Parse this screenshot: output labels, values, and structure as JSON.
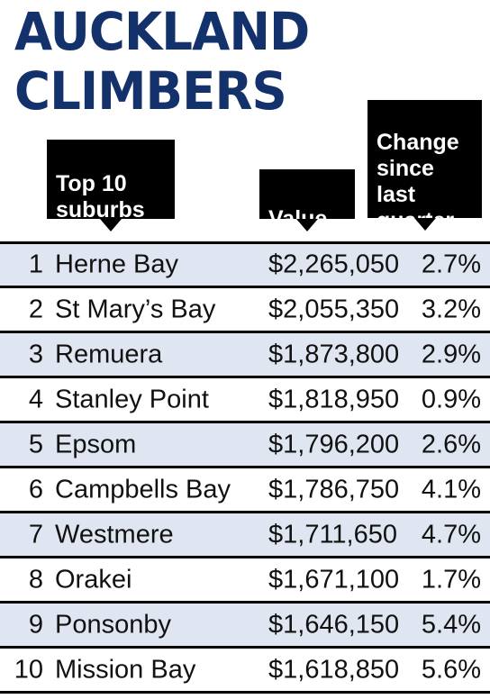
{
  "title": {
    "line1": "AUCKLAND",
    "line2": "CLIMBERS"
  },
  "headers": {
    "suburb": "Top 10\nsuburbs",
    "value": "Value",
    "change": "Change\nsince\nlast\nquarter"
  },
  "colors": {
    "title": "#13316b",
    "row_shade": "#dfe6f1",
    "callout": "#000000"
  },
  "rows": [
    {
      "rank": "1",
      "suburb": "Herne Bay",
      "value": "$2,265,050",
      "change": "2.7%"
    },
    {
      "rank": "2",
      "suburb": "St Mary’s Bay",
      "value": "$2,055,350",
      "change": "3.2%"
    },
    {
      "rank": "3",
      "suburb": "Remuera",
      "value": "$1,873,800",
      "change": "2.9%"
    },
    {
      "rank": "4",
      "suburb": "Stanley Point",
      "value": "$1,818,950",
      "change": "0.9%"
    },
    {
      "rank": "5",
      "suburb": "Epsom",
      "value": "$1,796,200",
      "change": "2.6%"
    },
    {
      "rank": "6",
      "suburb": "Campbells Bay",
      "value": "$1,786,750",
      "change": "4.1%"
    },
    {
      "rank": "7",
      "suburb": "Westmere",
      "value": "$1,711,650",
      "change": "4.7%"
    },
    {
      "rank": "8",
      "suburb": "Orakei",
      "value": "$1,671,100",
      "change": "1.7%"
    },
    {
      "rank": "9",
      "suburb": "Ponsonby",
      "value": "$1,646,150",
      "change": "5.4%"
    },
    {
      "rank": "10",
      "suburb": "Mission Bay",
      "value": "$1,618,850",
      "change": "5.6%"
    }
  ]
}
